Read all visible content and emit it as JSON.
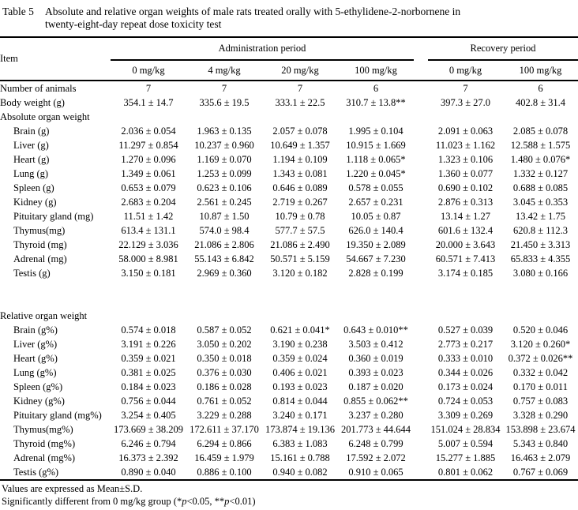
{
  "title": {
    "label": "Table 5",
    "lines": [
      "Absolute and relative organ weights of male rats treated orally with 5-ethylidene-2-norbornene in",
      "twenty-eight-day repeat dose toxicity test"
    ]
  },
  "header": {
    "item_label": "Item",
    "admin_group": "Administration period",
    "recovery_group": "Recovery period",
    "admin_cols": [
      "0 mg/kg",
      "4 mg/kg",
      "20 mg/kg",
      "100 mg/kg"
    ],
    "recovery_cols": [
      "0 mg/kg",
      "100 mg/kg"
    ]
  },
  "rows": [
    {
      "label": "Number of animals",
      "values": [
        "7",
        "7",
        "7",
        "6",
        "7",
        "6"
      ]
    },
    {
      "label": "Body weight (g)",
      "values": [
        "354.1 ± 14.7",
        "335.6 ± 19.5",
        "333.1 ± 22.5",
        "310.7 ± 13.8**",
        "397.3 ± 27.0",
        "402.8 ± 31.4"
      ]
    },
    {
      "label": "Absolute organ weight",
      "section": true
    },
    {
      "label": "Brain (g)",
      "indent": true,
      "values": [
        "2.036 ± 0.054",
        "1.963 ± 0.135",
        "2.057 ± 0.078",
        "1.995 ± 0.104",
        "2.091 ± 0.063",
        "2.085 ± 0.078"
      ]
    },
    {
      "label": "Liver (g)",
      "indent": true,
      "values": [
        "11.297 ± 0.854",
        "10.237 ± 0.960",
        "10.649 ± 1.357",
        "10.915 ± 1.669",
        "11.023 ± 1.162",
        "12.588 ± 1.575"
      ]
    },
    {
      "label": "Heart (g)",
      "indent": true,
      "values": [
        "1.270 ± 0.096",
        "1.169 ± 0.070",
        "1.194 ± 0.109",
        "1.118 ± 0.065*",
        "1.323 ± 0.106",
        "1.480 ± 0.076*"
      ]
    },
    {
      "label": "Lung (g)",
      "indent": true,
      "values": [
        "1.349 ± 0.061",
        "1.253 ± 0.099",
        "1.343 ± 0.081",
        "1.220 ± 0.045*",
        "1.360 ± 0.077",
        "1.332 ± 0.127"
      ]
    },
    {
      "label": "Spleen (g)",
      "indent": true,
      "values": [
        "0.653 ± 0.079",
        "0.623 ± 0.106",
        "0.646 ± 0.089",
        "0.578 ± 0.055",
        "0.690 ± 0.102",
        "0.688 ± 0.085"
      ]
    },
    {
      "label": "Kidney (g)",
      "indent": true,
      "values": [
        "2.683 ± 0.204",
        "2.561 ± 0.245",
        "2.719 ± 0.267",
        "2.657 ± 0.231",
        "2.876 ± 0.313",
        "3.045 ± 0.353"
      ]
    },
    {
      "label": "Pituitary gland (mg)",
      "indent": true,
      "values": [
        "11.51 ± 1.42",
        "10.87 ± 1.50",
        "10.79 ± 0.78",
        "10.05 ± 0.87",
        "13.14 ± 1.27",
        "13.42 ± 1.75"
      ]
    },
    {
      "label": "Thymus(mg)",
      "indent": true,
      "values": [
        "613.4 ± 131.1",
        "574.0 ± 98.4",
        "577.7 ± 57.5",
        "626.0 ± 140.4",
        "601.6 ± 132.4",
        "620.8 ± 112.3"
      ]
    },
    {
      "label": "Thyroid (mg)",
      "indent": true,
      "values": [
        "22.129 ± 3.036",
        "21.086 ± 2.806",
        "21.086 ± 2.490",
        "19.350 ± 2.089",
        "20.000 ± 3.643",
        "21.450 ± 3.313"
      ]
    },
    {
      "label": "Adrenal (mg)",
      "indent": true,
      "values": [
        "58.000 ± 8.981",
        "55.143 ± 6.842",
        "50.571 ± 5.159",
        "54.667 ± 7.230",
        "60.571 ± 7.413",
        "65.833 ± 4.355"
      ]
    },
    {
      "label": "Testis (g)",
      "indent": true,
      "values": [
        "3.150 ± 0.181",
        "2.969 ± 0.360",
        "3.120 ± 0.182",
        "2.828 ± 0.199",
        "3.174 ± 0.185",
        "3.080 ± 0.166"
      ]
    },
    {
      "label": "Relative organ weight",
      "section": true,
      "gap_before": true
    },
    {
      "label": "Brain (g%)",
      "indent": true,
      "values": [
        "0.574 ± 0.018",
        "0.587 ± 0.052",
        "0.621 ± 0.041*",
        "0.643 ± 0.010**",
        "0.527 ± 0.039",
        "0.520 ± 0.046"
      ]
    },
    {
      "label": "Liver (g%)",
      "indent": true,
      "values": [
        "3.191 ± 0.226",
        "3.050 ± 0.202",
        "3.190 ± 0.238",
        "3.503 ± 0.412",
        "2.773 ± 0.217",
        "3.120 ± 0.260*"
      ]
    },
    {
      "label": "Heart (g%)",
      "indent": true,
      "values": [
        "0.359 ± 0.021",
        "0.350 ± 0.018",
        "0.359 ± 0.024",
        "0.360 ± 0.019",
        "0.333 ± 0.010",
        "0.372 ± 0.026**"
      ]
    },
    {
      "label": "Lung (g%)",
      "indent": true,
      "values": [
        "0.381 ± 0.025",
        "0.376 ± 0.030",
        "0.406 ± 0.021",
        "0.393 ± 0.023",
        "0.344 ± 0.026",
        "0.332 ± 0.042"
      ]
    },
    {
      "label": "Spleen (g%)",
      "indent": true,
      "values": [
        "0.184 ± 0.023",
        "0.186 ± 0.028",
        "0.193 ± 0.023",
        "0.187 ± 0.020",
        "0.173 ± 0.024",
        "0.170 ± 0.011"
      ]
    },
    {
      "label": "Kidney (g%)",
      "indent": true,
      "values": [
        "0.756 ± 0.044",
        "0.761 ± 0.052",
        "0.814 ± 0.044",
        "0.855 ± 0.062**",
        "0.724 ± 0.053",
        "0.757 ± 0.083"
      ]
    },
    {
      "label": "Pituitary gland (mg%)",
      "indent": true,
      "values": [
        "3.254 ± 0.405",
        "3.229 ± 0.288",
        "3.240 ± 0.171",
        "3.237 ± 0.280",
        "3.309 ± 0.269",
        "3.328 ± 0.290"
      ]
    },
    {
      "label": "Thymus(mg%)",
      "indent": true,
      "values": [
        "173.669 ± 38.209",
        "172.611 ± 37.170",
        "173.874 ± 19.136",
        "201.773 ± 44.644",
        "151.024 ± 28.834",
        "153.898 ± 23.674"
      ]
    },
    {
      "label": "Thyroid (mg%)",
      "indent": true,
      "values": [
        "6.246 ± 0.794",
        "6.294 ± 0.866",
        "6.383 ± 1.083",
        "6.248 ± 0.799",
        "5.007 ± 0.594",
        "5.343 ± 0.840"
      ]
    },
    {
      "label": "Adrenal (mg%)",
      "indent": true,
      "values": [
        "16.373 ± 2.392",
        "16.459 ± 1.979",
        "15.161 ± 0.788",
        "17.592 ± 2.072",
        "15.277 ± 1.885",
        "16.463 ± 2.079"
      ]
    },
    {
      "label": "Testis (g%)",
      "indent": true,
      "values": [
        "0.890 ± 0.040",
        "0.886 ± 0.100",
        "0.940 ± 0.082",
        "0.910 ± 0.065",
        "0.801 ± 0.062",
        "0.767 ± 0.069"
      ]
    }
  ],
  "footnotes": {
    "mean_sd": "Values are expressed as Mean±S.D.",
    "significance": {
      "pre": "Significantly different from 0 mg/kg group (*",
      "p1": "p",
      "mid": "<0.05, **",
      "p2": "p",
      "post": "<0.01)"
    }
  }
}
